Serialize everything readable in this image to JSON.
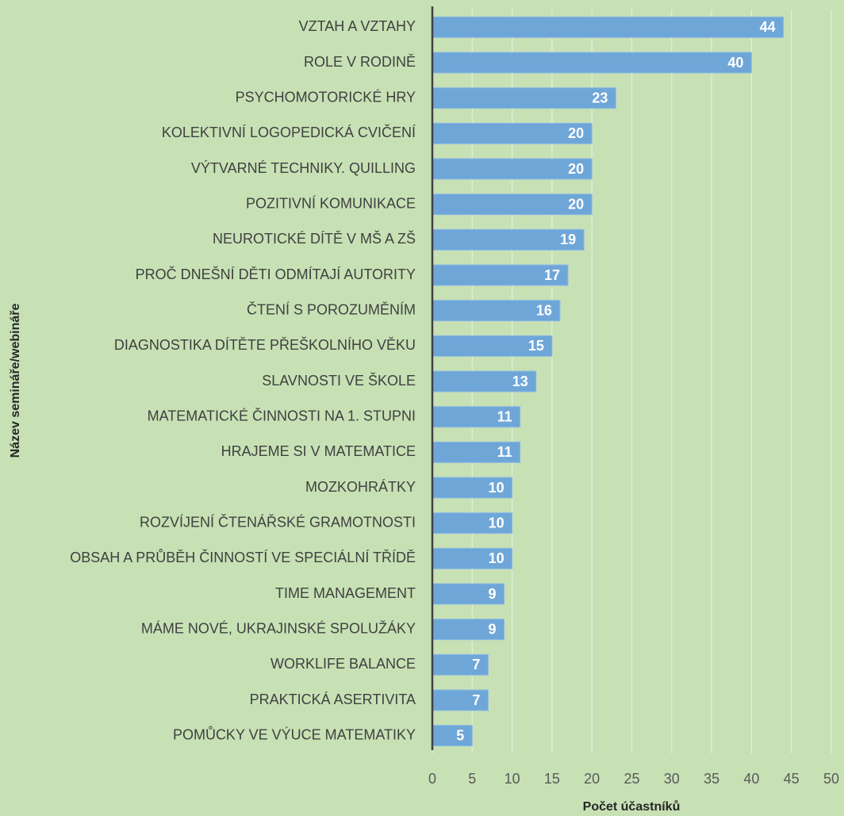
{
  "chart_data": {
    "type": "bar",
    "orientation": "horizontal",
    "xlabel": "Počet účastníků",
    "ylabel": "Název semináře/webináře",
    "categories": [
      "VZTAH A VZTAHY",
      "ROLE V RODINĚ",
      "PSYCHOMOTORICKÉ HRY",
      "KOLEKTIVNÍ LOGOPEDICKÁ CVIČENÍ",
      "VÝTVARNÉ TECHNIKY. QUILLING",
      "POZITIVNÍ KOMUNIKACE",
      "NEUROTICKÉ DÍTĚ V MŠ A ZŠ",
      "PROČ DNEŠNÍ DĚTI ODMÍTAJÍ AUTORITY",
      "ČTENÍ S POROZUMĚNÍM",
      "DIAGNOSTIKA DÍTĚTE PŘEŠKOLNÍHO VĚKU",
      "SLAVNOSTI VE ŠKOLE",
      "MATEMATICKÉ ČINNOSTI NA 1. STUPNI",
      "HRAJEME SI V MATEMATICE",
      "MOZKOHRÁTKY",
      "ROZVÍJENÍ ČTENÁŘSKÉ GRAMOTNOSTI",
      "OBSAH A PRŮBĚH ČINNOSTÍ VE SPECIÁLNÍ TŘÍDĚ",
      "TIME MANAGEMENT",
      "MÁME NOVÉ, UKRAJINSKÉ SPOLUŽÁKY",
      "WORKLIFE BALANCE",
      "PRAKTICKÁ ASERTIVITA",
      "POMŮCKY VE VÝUCE MATEMATIKY"
    ],
    "values": [
      44,
      40,
      23,
      20,
      20,
      20,
      19,
      17,
      16,
      15,
      13,
      11,
      11,
      10,
      10,
      10,
      9,
      9,
      7,
      7,
      5
    ],
    "color": "#6fa6d8",
    "xlim": [
      0,
      50
    ],
    "xticks": [
      0,
      5,
      10,
      15,
      20,
      25,
      30,
      35,
      40,
      45,
      50
    ],
    "grid": true
  }
}
